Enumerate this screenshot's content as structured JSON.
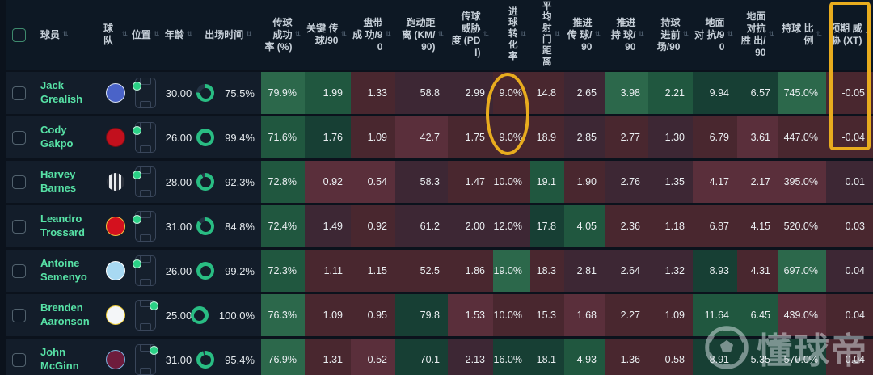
{
  "table": {
    "select_all_checkbox": {
      "checked": false
    },
    "fixed_columns": [
      {
        "key": "player",
        "label": "球员",
        "sort": "both"
      },
      {
        "key": "team",
        "label": "球队",
        "sort": "both"
      },
      {
        "key": "position",
        "label": "位置",
        "sort": "both"
      },
      {
        "key": "age",
        "label": "年龄",
        "sort": "both"
      },
      {
        "key": "minutes",
        "label": "出场时间",
        "sort": "both"
      }
    ],
    "stat_columns": [
      {
        "key": "pass-accuracy",
        "label": "传球 成功 率 (%)",
        "sort": "both",
        "vertical": false
      },
      {
        "key": "key-passes-90",
        "label": "关键 传 球/90",
        "sort": "both",
        "vertical": false
      },
      {
        "key": "dribbles-90",
        "label": "盘带 成 功/90",
        "sort": "both",
        "vertical": false
      },
      {
        "key": "distance-km-90",
        "label": "跑动距离 (KM/90)",
        "sort": "both",
        "vertical": false
      },
      {
        "key": "pass-threat-pdi",
        "label": "传球 威胁 度 (PDI)",
        "sort": "both",
        "vertical": false
      },
      {
        "key": "goal-conversion",
        "label": "进球转化率",
        "sort": "both",
        "vertical": true
      },
      {
        "key": "avg-shot-distance",
        "label": "平均射门距离",
        "sort": "both",
        "vertical": true
      },
      {
        "key": "progressive-passes-90",
        "label": "推进 传 球/90",
        "sort": "both",
        "vertical": false
      },
      {
        "key": "progressive-carries-90",
        "label": "推进 持 球/90",
        "sort": "both",
        "vertical": false
      },
      {
        "key": "carries-final-third-90",
        "label": "持球 进前 场/90",
        "sort": "both",
        "vertical": false
      },
      {
        "key": "ground-duels-90",
        "label": "地面 对 抗/90",
        "sort": "both",
        "vertical": false
      },
      {
        "key": "ground-duels-won-90",
        "label": "地面 对抗 胜 出/90",
        "sort": "both",
        "vertical": false
      },
      {
        "key": "possession-ratio",
        "label": "持球 比例",
        "sort": "both",
        "vertical": false
      },
      {
        "key": "expected-threat-xt",
        "label": "预期 威胁 (XT)",
        "sort": "asc",
        "vertical": false
      }
    ],
    "rows": [
      {
        "name": "Jack Grealish",
        "team": "everton",
        "position_dot": "tl",
        "age": "30.00",
        "time_pct": "75.5%",
        "time_value": 75.5,
        "stats": [
          {
            "v": "79.9%",
            "t": "g1"
          },
          {
            "v": "1.99",
            "t": "g2"
          },
          {
            "v": "1.33",
            "t": "r2"
          },
          {
            "v": "58.8",
            "t": "p"
          },
          {
            "v": "2.99",
            "t": "p"
          },
          {
            "v": "9.0%",
            "t": "r2"
          },
          {
            "v": "14.8",
            "t": "r2"
          },
          {
            "v": "2.65",
            "t": "p"
          },
          {
            "v": "3.98",
            "t": "g1"
          },
          {
            "v": "2.21",
            "t": "g2"
          },
          {
            "v": "9.94",
            "t": "g3"
          },
          {
            "v": "6.57",
            "t": "g3"
          },
          {
            "v": "745.0%",
            "t": "g1"
          },
          {
            "v": "-0.05",
            "t": "r2"
          }
        ]
      },
      {
        "name": "Cody Gakpo",
        "team": "liverpool",
        "position_dot": "tl",
        "age": "26.00",
        "time_pct": "99.4%",
        "time_value": 99.4,
        "stats": [
          {
            "v": "71.6%",
            "t": "g2"
          },
          {
            "v": "1.76",
            "t": "g3"
          },
          {
            "v": "1.09",
            "t": "r2"
          },
          {
            "v": "42.7",
            "t": "r1"
          },
          {
            "v": "1.75",
            "t": "r2"
          },
          {
            "v": "9.0%",
            "t": "r2"
          },
          {
            "v": "18.9",
            "t": "r2"
          },
          {
            "v": "2.85",
            "t": "p"
          },
          {
            "v": "2.77",
            "t": "r2"
          },
          {
            "v": "1.30",
            "t": "p"
          },
          {
            "v": "6.79",
            "t": "r2"
          },
          {
            "v": "3.61",
            "t": "r1"
          },
          {
            "v": "447.0%",
            "t": "r2"
          },
          {
            "v": "-0.04",
            "t": "r2"
          }
        ]
      },
      {
        "name": "Harvey Barnes",
        "team": "newcastle",
        "position_dot": "tl",
        "age": "28.00",
        "time_pct": "92.3%",
        "time_value": 92.3,
        "stats": [
          {
            "v": "72.8%",
            "t": "g2"
          },
          {
            "v": "0.92",
            "t": "r1"
          },
          {
            "v": "0.54",
            "t": "r1"
          },
          {
            "v": "58.3",
            "t": "p"
          },
          {
            "v": "1.47",
            "t": "r2"
          },
          {
            "v": "10.0%",
            "t": "r2"
          },
          {
            "v": "19.1",
            "t": "g2"
          },
          {
            "v": "1.90",
            "t": "r2"
          },
          {
            "v": "2.76",
            "t": "p"
          },
          {
            "v": "1.35",
            "t": "p"
          },
          {
            "v": "4.17",
            "t": "r1"
          },
          {
            "v": "2.17",
            "t": "r1"
          },
          {
            "v": "395.0%",
            "t": "r1"
          },
          {
            "v": "0.01",
            "t": "p"
          }
        ]
      },
      {
        "name": "Leandro Trossard",
        "team": "arsenal",
        "position_dot": "tl",
        "age": "31.00",
        "time_pct": "84.8%",
        "time_value": 84.8,
        "stats": [
          {
            "v": "72.4%",
            "t": "g2"
          },
          {
            "v": "1.49",
            "t": "p"
          },
          {
            "v": "0.92",
            "t": "r2"
          },
          {
            "v": "61.2",
            "t": "p"
          },
          {
            "v": "2.00",
            "t": "p"
          },
          {
            "v": "12.0%",
            "t": "p"
          },
          {
            "v": "17.8",
            "t": "g3"
          },
          {
            "v": "4.05",
            "t": "g2"
          },
          {
            "v": "2.36",
            "t": "r2"
          },
          {
            "v": "1.18",
            "t": "r2"
          },
          {
            "v": "6.87",
            "t": "r2"
          },
          {
            "v": "4.15",
            "t": "r2"
          },
          {
            "v": "520.0%",
            "t": "r2"
          },
          {
            "v": "0.03",
            "t": "r2"
          }
        ]
      },
      {
        "name": "Antoine Semenyo",
        "team": "sky-blue",
        "position_dot": "tl",
        "age": "26.00",
        "time_pct": "99.2%",
        "time_value": 99.2,
        "stats": [
          {
            "v": "72.3%",
            "t": "g2"
          },
          {
            "v": "1.11",
            "t": "r2"
          },
          {
            "v": "1.15",
            "t": "r2"
          },
          {
            "v": "52.5",
            "t": "r2"
          },
          {
            "v": "1.86",
            "t": "r2"
          },
          {
            "v": "19.0%",
            "t": "g1"
          },
          {
            "v": "18.3",
            "t": "r2"
          },
          {
            "v": "2.81",
            "t": "p"
          },
          {
            "v": "2.64",
            "t": "p"
          },
          {
            "v": "1.32",
            "t": "p"
          },
          {
            "v": "8.93",
            "t": "g3"
          },
          {
            "v": "4.31",
            "t": "r2"
          },
          {
            "v": "697.0%",
            "t": "g1"
          },
          {
            "v": "0.04",
            "t": "p"
          }
        ]
      },
      {
        "name": "Brenden Aaronson",
        "team": "leeds",
        "position_dot": "tr",
        "age": "25.00",
        "time_pct": "100.0%",
        "time_value": 100,
        "stats": [
          {
            "v": "76.3%",
            "t": "g1"
          },
          {
            "v": "1.09",
            "t": "r2"
          },
          {
            "v": "0.95",
            "t": "r2"
          },
          {
            "v": "79.8",
            "t": "g3"
          },
          {
            "v": "1.53",
            "t": "r1"
          },
          {
            "v": "10.0%",
            "t": "r2"
          },
          {
            "v": "15.3",
            "t": "r2"
          },
          {
            "v": "1.68",
            "t": "r1"
          },
          {
            "v": "2.27",
            "t": "r2"
          },
          {
            "v": "1.09",
            "t": "r2"
          },
          {
            "v": "11.64",
            "t": "g2"
          },
          {
            "v": "6.45",
            "t": "g2"
          },
          {
            "v": "439.0%",
            "t": "r1"
          },
          {
            "v": "0.04",
            "t": "r2"
          }
        ]
      },
      {
        "name": "John McGinn",
        "team": "aston-villa",
        "position_dot": "tr",
        "age": "31.00",
        "time_pct": "95.4%",
        "time_value": 95.4,
        "stats": [
          {
            "v": "76.9%",
            "t": "g1"
          },
          {
            "v": "1.31",
            "t": "r2"
          },
          {
            "v": "0.52",
            "t": "r1"
          },
          {
            "v": "70.1",
            "t": "g3"
          },
          {
            "v": "2.13",
            "t": "p"
          },
          {
            "v": "16.0%",
            "t": "g3"
          },
          {
            "v": "18.1",
            "t": "g3"
          },
          {
            "v": "4.93",
            "t": "g2"
          },
          {
            "v": "1.36",
            "t": "r2"
          },
          {
            "v": "0.58",
            "t": "r2"
          },
          {
            "v": "8.91",
            "t": "g3"
          },
          {
            "v": "5.35",
            "t": "g3"
          },
          {
            "v": "570.0%",
            "t": "g3"
          },
          {
            "v": "0.04",
            "t": "r2"
          }
        ]
      }
    ]
  },
  "teams": {
    "everton": {
      "bg": "#4A63C8",
      "accent": "#D9E2F5",
      "pattern": "solid"
    },
    "liverpool": {
      "bg": "#C2101D",
      "accent": "#7A0E14",
      "pattern": "solid"
    },
    "newcastle": {
      "bg": "#2C323D",
      "accent": "#E9ECEF",
      "pattern": "stripes"
    },
    "arsenal": {
      "bg": "#D4111E",
      "accent": "#F2C23E",
      "pattern": "solid"
    },
    "sky-blue": {
      "bg": "#A8D9F2",
      "accent": "#FFFFFF",
      "pattern": "solid"
    },
    "leeds": {
      "bg": "#F4F6F8",
      "accent": "#F0CF3A",
      "pattern": "solid"
    },
    "aston-villa": {
      "bg": "#6E1C3C",
      "accent": "#7FB2DF",
      "pattern": "solid"
    }
  },
  "colors": {
    "tones": {
      "g1": "#2C684B",
      "g2": "#20573F",
      "g3": "#173F34",
      "r1": "#5A2F3B",
      "r2": "#49272F",
      "p": "#3D2734"
    },
    "ring": "#29BD83",
    "annotation": "#E8AC1E",
    "player_name": "#57E2A6"
  },
  "annotations": {
    "ellipse_note": "circles 进球转化率 values 9.0% / 9.0% of rows 1-2",
    "rect_note": "boxes 预期威胁 (XT) column header and values -0.05 / -0.04"
  },
  "watermark": {
    "text": "懂球帝"
  }
}
